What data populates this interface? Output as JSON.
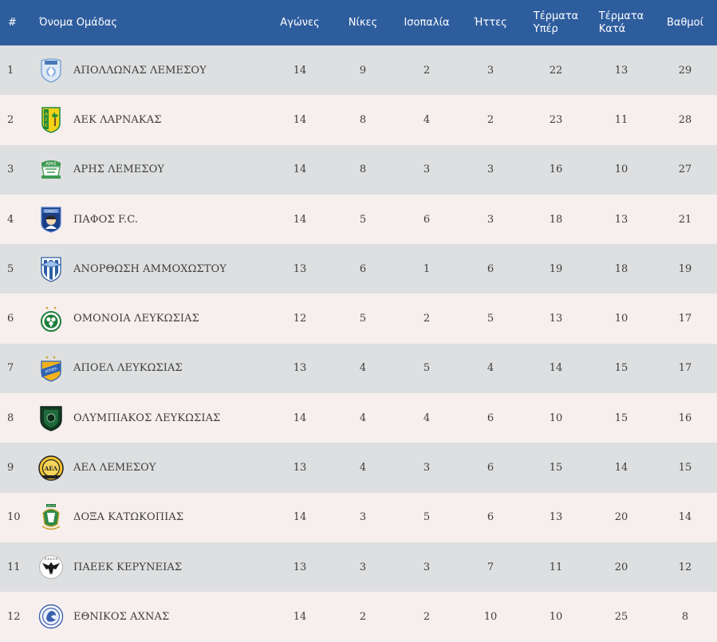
{
  "headers": {
    "rank": "#",
    "team": "Όνομα Ομάδας",
    "played": "Αγώνες",
    "wins": "Νίκες",
    "draws": "Ισοπαλία",
    "losses": "Ήττες",
    "goals_for_1": "Τέρματα",
    "goals_for_2": "Υπέρ",
    "goals_against_1": "Τέρματα",
    "goals_against_2": "Κατά",
    "points": "Βαθμοί"
  },
  "colors": {
    "header_bg": "#2e5d9e",
    "row_odd": "#dedfe0",
    "row_even": "#f7eeee"
  },
  "rows": [
    {
      "rank": "1",
      "team": "ΑΠΟΛΛΩΝΑΣ ΛΕΜΕΣΟΥ",
      "crest": "apollon-crest-icon",
      "played": "14",
      "wins": "9",
      "draws": "2",
      "losses": "3",
      "gf": "22",
      "ga": "13",
      "pts": "29"
    },
    {
      "rank": "2",
      "team": "ΑΕΚ ΛΑΡΝΑΚΑΣ",
      "crest": "aek-crest-icon",
      "played": "14",
      "wins": "8",
      "draws": "4",
      "losses": "2",
      "gf": "23",
      "ga": "11",
      "pts": "28"
    },
    {
      "rank": "3",
      "team": "ΑΡΗΣ ΛΕΜΕΣΟΥ",
      "crest": "aris-crest-icon",
      "played": "14",
      "wins": "8",
      "draws": "3",
      "losses": "3",
      "gf": "16",
      "ga": "10",
      "pts": "27"
    },
    {
      "rank": "4",
      "team": "ΠΑΦΟΣ F.C.",
      "crest": "pafos-crest-icon",
      "played": "14",
      "wins": "5",
      "draws": "6",
      "losses": "3",
      "gf": "18",
      "ga": "13",
      "pts": "21"
    },
    {
      "rank": "5",
      "team": "ΑΝΟΡΘΩΣΗ ΑΜΜΟΧΩΣΤΟΥ",
      "crest": "anorthosis-crest-icon",
      "played": "13",
      "wins": "6",
      "draws": "1",
      "losses": "6",
      "gf": "19",
      "ga": "18",
      "pts": "19"
    },
    {
      "rank": "6",
      "team": "ΟΜΟΝΟΙΑ ΛΕΥΚΩΣΙΑΣ",
      "crest": "omonoia-crest-icon",
      "played": "12",
      "wins": "5",
      "draws": "2",
      "losses": "5",
      "gf": "13",
      "ga": "10",
      "pts": "17"
    },
    {
      "rank": "7",
      "team": "ΑΠΟΕΛ ΛΕΥΚΩΣΙΑΣ",
      "crest": "apoel-crest-icon",
      "played": "13",
      "wins": "4",
      "draws": "5",
      "losses": "4",
      "gf": "14",
      "ga": "15",
      "pts": "17"
    },
    {
      "rank": "8",
      "team": "ΟΛΥΜΠΙΑΚΟΣ ΛΕΥΚΩΣΙΑΣ",
      "crest": "olympiakos-crest-icon",
      "played": "14",
      "wins": "4",
      "draws": "4",
      "losses": "6",
      "gf": "10",
      "ga": "15",
      "pts": "16"
    },
    {
      "rank": "9",
      "team": "ΑΕΛ ΛΕΜΕΣΟΥ",
      "crest": "ael-crest-icon",
      "played": "13",
      "wins": "4",
      "draws": "3",
      "losses": "6",
      "gf": "15",
      "ga": "14",
      "pts": "15"
    },
    {
      "rank": "10",
      "team": "ΔΟΞΑ ΚΑΤΩΚΟΠΙΑΣ",
      "crest": "doxa-crest-icon",
      "played": "14",
      "wins": "3",
      "draws": "5",
      "losses": "6",
      "gf": "13",
      "ga": "20",
      "pts": "14"
    },
    {
      "rank": "11",
      "team": "ΠΑΕΕΚ ΚΕΡΥΝΕΙΑΣ",
      "crest": "paeek-crest-icon",
      "played": "13",
      "wins": "3",
      "draws": "3",
      "losses": "7",
      "gf": "11",
      "ga": "20",
      "pts": "12"
    },
    {
      "rank": "12",
      "team": "ΕΘΝΙΚΟΣ ΑΧΝΑΣ",
      "crest": "ethnikos-crest-icon",
      "played": "14",
      "wins": "2",
      "draws": "2",
      "losses": "10",
      "gf": "10",
      "ga": "25",
      "pts": "8"
    }
  ]
}
